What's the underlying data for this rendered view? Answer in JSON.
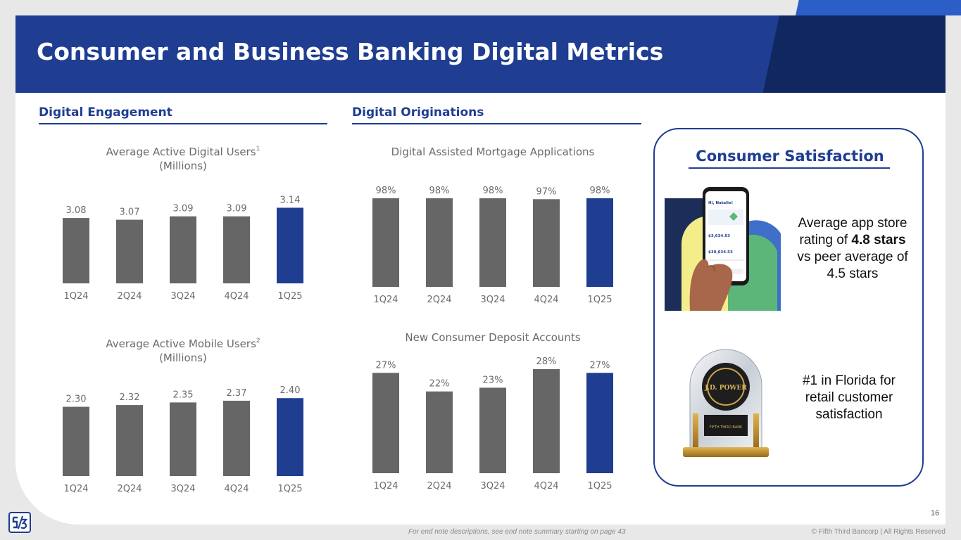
{
  "header": {
    "title": "Consumer and Business Banking Digital Metrics"
  },
  "sections": {
    "engagement": "Digital Engagement",
    "originations": "Digital Originations"
  },
  "colors": {
    "primary": "#1f3e92",
    "bar_gray": "#666666",
    "bar_highlight": "#1f3e92"
  },
  "chart_data": [
    {
      "id": "active-digital-users",
      "type": "bar",
      "title": "Average Active Digital Users",
      "title_note": "1",
      "subtitle": "(Millions)",
      "categories": [
        "1Q24",
        "2Q24",
        "3Q24",
        "4Q24",
        "1Q25"
      ],
      "values": [
        3.08,
        3.07,
        3.09,
        3.09,
        3.14
      ],
      "labels": [
        "3.08",
        "3.07",
        "3.09",
        "3.09",
        "3.14"
      ],
      "highlight_index": 4,
      "ylim": [
        2.7,
        3.15
      ]
    },
    {
      "id": "active-mobile-users",
      "type": "bar",
      "title": "Average Active Mobile Users",
      "title_note": "2",
      "subtitle": "(Millions)",
      "categories": [
        "1Q24",
        "2Q24",
        "3Q24",
        "4Q24",
        "1Q25"
      ],
      "values": [
        2.3,
        2.32,
        2.35,
        2.37,
        2.4
      ],
      "labels": [
        "2.30",
        "2.32",
        "2.35",
        "2.37",
        "2.40"
      ],
      "highlight_index": 4,
      "ylim": [
        1.5,
        2.41
      ]
    },
    {
      "id": "mortgage-applications",
      "type": "bar",
      "title": "Digital Assisted Mortgage Applications",
      "categories": [
        "1Q24",
        "2Q24",
        "3Q24",
        "4Q24",
        "1Q25"
      ],
      "values": [
        98,
        98,
        98,
        97,
        98
      ],
      "labels": [
        "98%",
        "98%",
        "98%",
        "97%",
        "98%"
      ],
      "highlight_index": 4,
      "ylim": [
        0,
        98
      ]
    },
    {
      "id": "deposit-accounts",
      "type": "bar",
      "title": "New Consumer Deposit Accounts",
      "categories": [
        "1Q24",
        "2Q24",
        "3Q24",
        "4Q24",
        "1Q25"
      ],
      "values": [
        27,
        22,
        23,
        28,
        27
      ],
      "labels": [
        "27%",
        "22%",
        "23%",
        "28%",
        "27%"
      ],
      "highlight_index": 4,
      "ylim": [
        0,
        28
      ]
    }
  ],
  "satisfaction": {
    "title": "Consumer Satisfaction",
    "app_rating_pre": "Average app store rating of",
    "app_rating_bold": "4.8 stars",
    "app_rating_post": "vs peer average of 4.5 stars",
    "florida": "#1 in Florida for retail customer satisfaction",
    "phone": {
      "greeting": "Hi, Natalie!",
      "balance_1": "$3,634.53",
      "balance_2": "$30,634.53"
    },
    "award_brand": "J.D. POWER",
    "award_plaque": "FIFTH THIRD BANK"
  },
  "footer": {
    "footnote": "For end note descriptions, see end note summary starting on page 43",
    "copyright": "© Fifth Third Bancorp | All Rights Reserved",
    "page_number": "16"
  }
}
